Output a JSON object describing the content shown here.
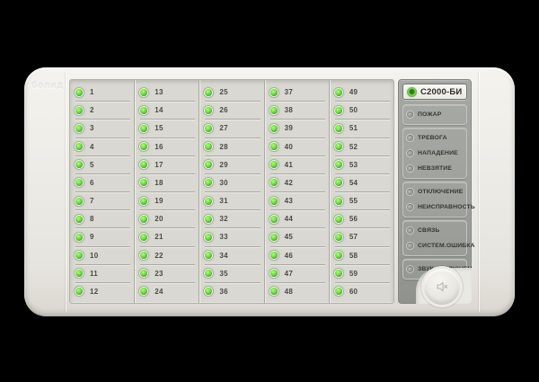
{
  "device": {
    "model": "С2000-БИ",
    "embossed_logo": "болид",
    "colors": {
      "background": "#000000",
      "casing": "#ebe9e3",
      "grid_panel": "#d9d8d2",
      "status_panel": "#9b9e98",
      "model_badge_bg": "#f3f2ed",
      "led_green": "#4cc824",
      "led_idle_gray": "#94978f",
      "text_dark": "#3a3c36"
    }
  },
  "grid": {
    "columns": [
      {
        "numbers": [
          1,
          2,
          3,
          4,
          5,
          6,
          7,
          8,
          9,
          10,
          11,
          12
        ]
      },
      {
        "numbers": [
          13,
          14,
          15,
          16,
          17,
          18,
          19,
          20,
          21,
          22,
          23,
          24
        ]
      },
      {
        "numbers": [
          25,
          26,
          27,
          28,
          29,
          30,
          31,
          32,
          33,
          34,
          35,
          36
        ]
      },
      {
        "numbers": [
          37,
          38,
          39,
          40,
          41,
          42,
          43,
          44,
          45,
          46,
          47,
          48
        ]
      },
      {
        "numbers": [
          49,
          50,
          51,
          52,
          53,
          54,
          55,
          56,
          57,
          58,
          59,
          60
        ]
      }
    ],
    "led_state": "green-lit"
  },
  "status_panel": {
    "header": {
      "label": "С2000-БИ",
      "led": "power-led-green"
    },
    "groups": [
      {
        "labels": [
          "ПОЖАР"
        ]
      },
      {
        "labels": [
          "ТРЕВОГА",
          "НАПАДЕНИЕ",
          "НЕВЗЯТИЕ"
        ]
      },
      {
        "labels": [
          "ОТКЛЮЧЕНИЕ",
          "НЕИСПРАВНОСТЬ"
        ]
      },
      {
        "labels": [
          "СВЯЗЬ",
          "СИСТЕМ.ОШИБКА"
        ]
      },
      {
        "labels": [
          "ЗВУК ОТКЛЮЧЕН"
        ]
      }
    ],
    "indicator_led_state": "gray-unlit",
    "mute_button": {
      "icon": "speaker-muted-icon"
    }
  }
}
